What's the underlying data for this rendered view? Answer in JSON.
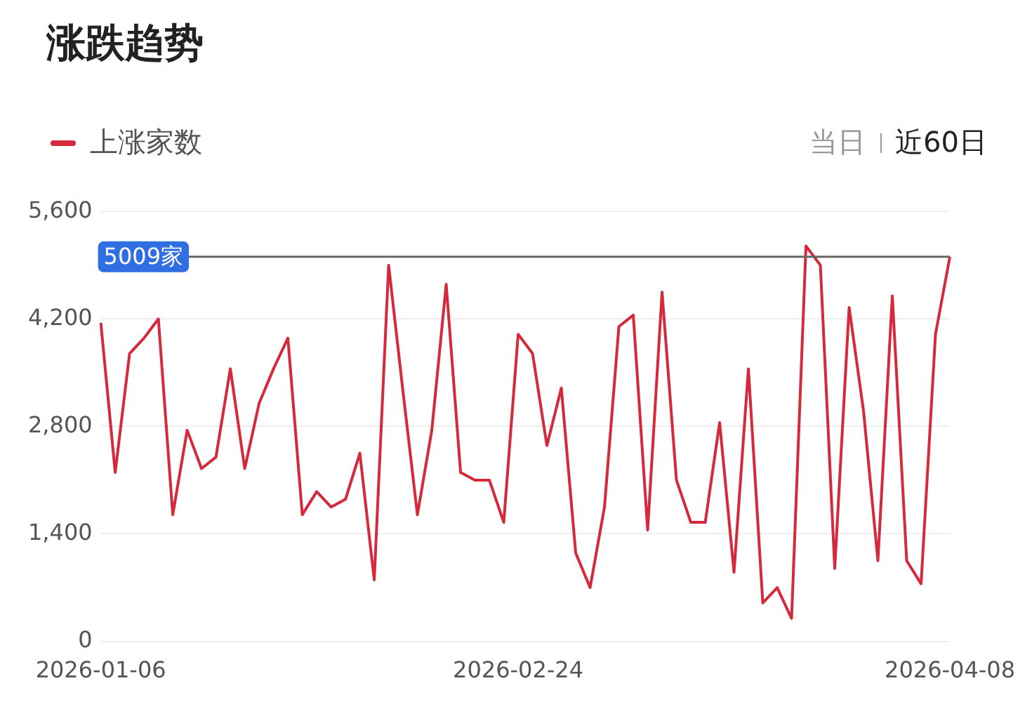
{
  "chart_data": {
    "type": "line",
    "title": "涨跌趋势",
    "categories": [
      "2026-01-06",
      null,
      null,
      null,
      null,
      null,
      null,
      null,
      null,
      null,
      null,
      null,
      null,
      null,
      null,
      null,
      null,
      null,
      null,
      null,
      null,
      null,
      null,
      null,
      null,
      null,
      null,
      null,
      null,
      "2026-02-24",
      null,
      null,
      null,
      null,
      null,
      null,
      null,
      null,
      null,
      null,
      null,
      null,
      null,
      null,
      null,
      null,
      null,
      null,
      null,
      null,
      null,
      null,
      null,
      null,
      null,
      null,
      null,
      null,
      null,
      "2026-04-08"
    ],
    "series": [
      {
        "name": "上涨家数",
        "color": "#d42a3c",
        "values": [
          4150,
          2200,
          3750,
          3950,
          4200,
          1650,
          2750,
          2250,
          2400,
          3550,
          2250,
          3100,
          3550,
          3950,
          1650,
          1950,
          1750,
          1850,
          2450,
          800,
          4900,
          3250,
          1650,
          2750,
          4650,
          2200,
          2100,
          2100,
          1550,
          4000,
          3750,
          2550,
          3300,
          1150,
          700,
          1750,
          4100,
          4250,
          1450,
          4550,
          2100,
          1550,
          1550,
          2850,
          900,
          3550,
          500,
          700,
          300,
          5150,
          4900,
          950,
          4350,
          3000,
          1050,
          4500,
          1050,
          750,
          4000,
          5009
        ]
      }
    ],
    "ylim": [
      0,
      5600
    ],
    "yticks": [
      {
        "value": 0,
        "label": "0"
      },
      {
        "value": 1400,
        "label": "1,400"
      },
      {
        "value": 2800,
        "label": "2,800"
      },
      {
        "value": 4200,
        "label": "4,200"
      },
      {
        "value": 5600,
        "label": "5,600"
      }
    ],
    "ref_lines": [
      {
        "axis": "y",
        "value": 5009,
        "label": "5009家",
        "color": "#666666"
      }
    ],
    "annotations": [
      "当日",
      "近60日"
    ],
    "grid": "y",
    "legend": "top left",
    "marker": "none",
    "line_style": "solid"
  }
}
